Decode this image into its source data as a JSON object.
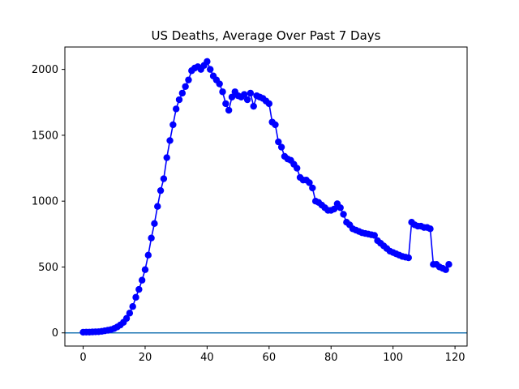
{
  "chart_data": {
    "type": "line",
    "title": "US Deaths, Average Over Past 7 Days",
    "xlabel": "",
    "ylabel": "",
    "xlim": [
      -5.9,
      123.9
    ],
    "ylim": [
      -100,
      2170
    ],
    "x_ticks": [
      0,
      20,
      40,
      60,
      80,
      100,
      120
    ],
    "y_ticks": [
      0,
      500,
      1000,
      1500,
      2000
    ],
    "grid": false,
    "legend": "none",
    "reference_line": {
      "y": 0,
      "color": "#1f77b4"
    },
    "series": [
      {
        "color": "#0000ff",
        "marker": "circle",
        "x": [
          0,
          1,
          2,
          3,
          4,
          5,
          6,
          7,
          8,
          9,
          10,
          11,
          12,
          13,
          14,
          15,
          16,
          17,
          18,
          19,
          20,
          21,
          22,
          23,
          24,
          25,
          26,
          27,
          28,
          29,
          30,
          31,
          32,
          33,
          34,
          35,
          36,
          37,
          38,
          39,
          40,
          41,
          42,
          43,
          44,
          45,
          46,
          47,
          48,
          49,
          50,
          51,
          52,
          53,
          54,
          55,
          56,
          57,
          58,
          59,
          60,
          61,
          62,
          63,
          64,
          65,
          66,
          67,
          68,
          69,
          70,
          71,
          72,
          73,
          74,
          75,
          76,
          77,
          78,
          79,
          80,
          81,
          82,
          83,
          84,
          85,
          86,
          87,
          88,
          89,
          90,
          91,
          92,
          93,
          94,
          95,
          96,
          97,
          98,
          99,
          100,
          101,
          102,
          103,
          104,
          105,
          106,
          107,
          108,
          109,
          110,
          111,
          112,
          113,
          114,
          115,
          116,
          117,
          118
        ],
        "values": [
          5,
          6,
          6,
          7,
          8,
          9,
          12,
          16,
          20,
          25,
          33,
          45,
          60,
          80,
          110,
          150,
          200,
          270,
          330,
          400,
          480,
          590,
          720,
          830,
          960,
          1080,
          1170,
          1330,
          1460,
          1580,
          1700,
          1770,
          1820,
          1870,
          1920,
          1990,
          2010,
          2020,
          2000,
          2030,
          2060,
          2000,
          1950,
          1920,
          1890,
          1830,
          1740,
          1690,
          1790,
          1830,
          1800,
          1790,
          1810,
          1770,
          1820,
          1720,
          1800,
          1790,
          1780,
          1760,
          1740,
          1600,
          1580,
          1450,
          1410,
          1340,
          1320,
          1310,
          1280,
          1250,
          1180,
          1160,
          1160,
          1140,
          1100,
          1000,
          990,
          970,
          950,
          930,
          930,
          940,
          980,
          950,
          900,
          840,
          820,
          790,
          780,
          770,
          760,
          755,
          750,
          745,
          740,
          700,
          680,
          660,
          640,
          620,
          610,
          600,
          590,
          580,
          575,
          570,
          840,
          820,
          810,
          810,
          800,
          800,
          790,
          520,
          520,
          500,
          490,
          480,
          520
        ]
      }
    ]
  }
}
